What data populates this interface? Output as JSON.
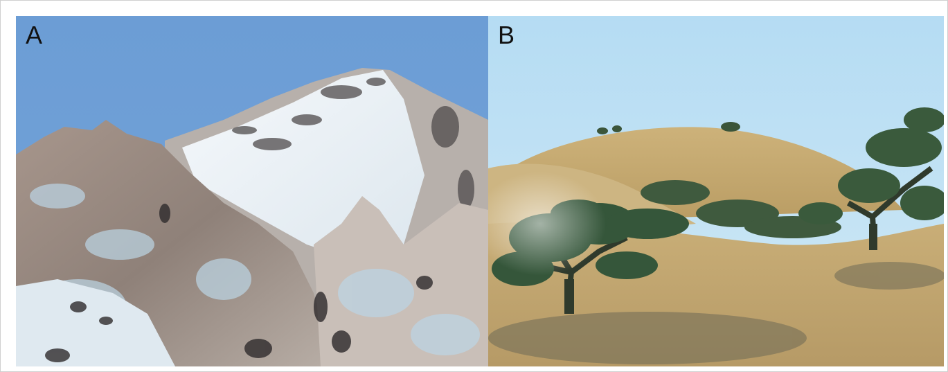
{
  "panels": [
    {
      "label": "A",
      "icon": "snow-mountain-peak-photo"
    },
    {
      "label": "B",
      "icon": "golden-hills-oak-trees-photo"
    }
  ],
  "colors": {
    "sky_a": "#6e9fd6",
    "snow": "#eef3f7",
    "rock": "#9b8d84",
    "sky_b": "#b8def3",
    "hill": "#c7ad74",
    "tree": "#3d5a3a"
  }
}
